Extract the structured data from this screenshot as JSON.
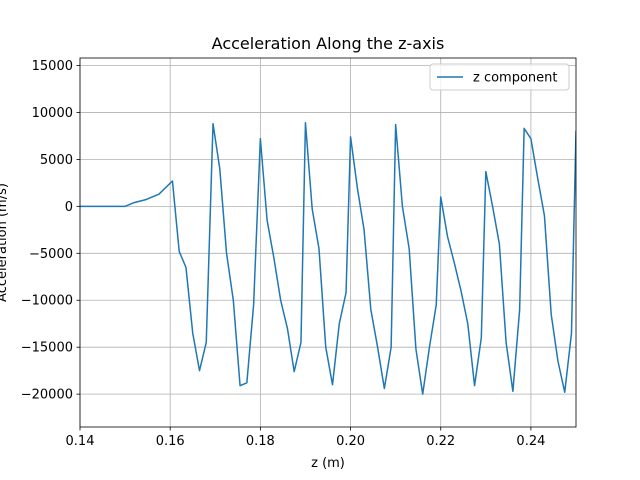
{
  "chart_data": {
    "type": "line",
    "title": "Acceleration Along the z-axis",
    "xlabel": "z (m)",
    "ylabel": "Acceleration (m/s)",
    "xlim": [
      0.14,
      0.25
    ],
    "ylim": [
      -23500,
      15800
    ],
    "xticks": [
      0.14,
      0.16,
      0.18,
      0.2,
      0.22,
      0.24
    ],
    "xtick_labels": [
      "0.14",
      "0.16",
      "0.18",
      "0.20",
      "0.22",
      "0.24"
    ],
    "yticks": [
      -20000,
      -15000,
      -10000,
      -5000,
      0,
      5000,
      10000,
      15000
    ],
    "ytick_labels": [
      "−20000",
      "−15000",
      "−10000",
      "−5000",
      "0",
      "5000",
      "10000",
      "15000"
    ],
    "grid": true,
    "legend_position": "upper right",
    "series": [
      {
        "name": "z component",
        "color": "#1f77b4",
        "x": [
          0.14,
          0.142,
          0.144,
          0.146,
          0.148,
          0.15,
          0.152,
          0.1545,
          0.1575,
          0.1605,
          0.162,
          0.1635,
          0.165,
          0.1665,
          0.168,
          0.1695,
          0.171,
          0.1725,
          0.174,
          0.1755,
          0.177,
          0.1785,
          0.18,
          0.1815,
          0.183,
          0.1845,
          0.186,
          0.1875,
          0.189,
          0.19,
          0.1915,
          0.193,
          0.1945,
          0.196,
          0.1975,
          0.199,
          0.2,
          0.2015,
          0.203,
          0.2045,
          0.206,
          0.2075,
          0.209,
          0.21,
          0.2115,
          0.213,
          0.2145,
          0.216,
          0.2175,
          0.219,
          0.22,
          0.2215,
          0.223,
          0.2245,
          0.226,
          0.2275,
          0.229,
          0.23,
          0.2315,
          0.233,
          0.2345,
          0.236,
          0.2375,
          0.2385,
          0.24,
          0.2415,
          0.243,
          0.2445,
          0.246,
          0.2475,
          0.249,
          0.25,
          0.2502
        ],
        "y": [
          0,
          0,
          0,
          0,
          0,
          0,
          400,
          700,
          1300,
          2700,
          -4800,
          -6500,
          -13500,
          -17500,
          -14500,
          8800,
          4000,
          -5000,
          -10000,
          -19100,
          -18800,
          -10500,
          7200,
          -1500,
          -5500,
          -10000,
          -13000,
          -17600,
          -14500,
          8900,
          -300,
          -4500,
          -15000,
          -19000,
          -12500,
          -9200,
          7400,
          2000,
          -2500,
          -11000,
          -15000,
          -19400,
          -15000,
          8700,
          0,
          -4500,
          -15200,
          -20000,
          -15000,
          -10500,
          1000,
          -3200,
          -6000,
          -9000,
          -12500,
          -19100,
          -14000,
          3700,
          0,
          -4000,
          -14500,
          -19700,
          -11000,
          8300,
          7200,
          3000,
          -1000,
          -11500,
          -16500,
          -19800,
          -13500,
          8000,
          5500
        ]
      }
    ]
  }
}
